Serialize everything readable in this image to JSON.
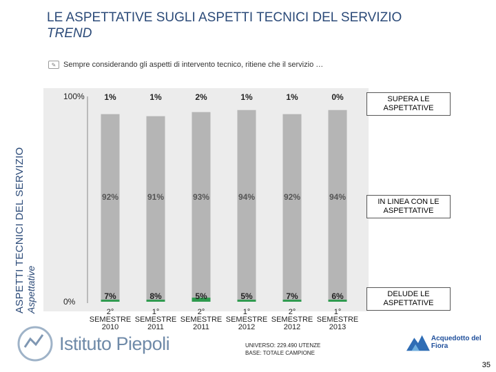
{
  "header": {
    "title": "LE ASPETTATIVE SUGLI ASPETTI TECNICI DEL SERVIZIO",
    "subtitle": "TREND"
  },
  "side": {
    "line1": "ASPETTI TECNICI DEL SERVIZIO",
    "line2": "Aspettative"
  },
  "question": "Sempre considerando gli aspetti di intervento tecnico, ritiene che il servizio …",
  "chart_data": {
    "type": "bar",
    "stacked": true,
    "categories": [
      [
        "2°",
        "SEMESTRE",
        "2010"
      ],
      [
        "1°",
        "SEMESTRE",
        "2011"
      ],
      [
        "2°",
        "SEMESTRE",
        "2011"
      ],
      [
        "1°",
        "SEMESTRE",
        "2012"
      ],
      [
        "2°",
        "SEMESTRE",
        "2012"
      ],
      [
        "1°",
        "SEMESTRE",
        "2013"
      ]
    ],
    "series": [
      {
        "name": "DELUDE LE ASPETTATIVE",
        "color": "#e31a1c",
        "values": [
          7,
          8,
          5,
          5,
          7,
          6
        ],
        "labels": [
          "7%",
          "8%",
          "5%",
          "5%",
          "7%",
          "6%"
        ]
      },
      {
        "name": "IN LINEA CON LE ASPETTATIVE",
        "color": "#b5b5b5",
        "values": [
          92,
          91,
          93,
          94,
          92,
          94
        ],
        "labels": [
          "92%",
          "91%",
          "93%",
          "94%",
          "92%",
          "94%"
        ]
      },
      {
        "name": "SUPERA LE ASPETTATIVE",
        "color": "#2e9a4e",
        "values": [
          1,
          1,
          2,
          1,
          1,
          0
        ],
        "labels": [
          "1%",
          "1%",
          "2%",
          "1%",
          "1%",
          "0%"
        ]
      }
    ],
    "y_ticks": [
      "0%",
      "100%"
    ],
    "ylim": [
      0,
      100
    ]
  },
  "legend_labels": {
    "supera": "SUPERA LE ASPETTATIVE",
    "in_linea": "IN LINEA CON LE ASPETTATIVE",
    "delude": "DELUDE LE ASPETTATIVE"
  },
  "footer": {
    "logo_text": "Istituto Piepoli",
    "universe_line": "UNIVERSO: 229.490 UTENZE",
    "base_line": "BASE: TOTALE CAMPIONE",
    "client_logo": "Acquedotto del Fiora",
    "page_number": "35"
  }
}
